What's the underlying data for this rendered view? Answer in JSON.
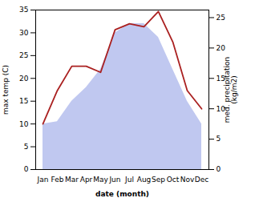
{
  "chart_data": {
    "type": "area",
    "categories": [
      "Jan",
      "Feb",
      "Mar",
      "Apr",
      "May",
      "Jun",
      "Jul",
      "Aug",
      "Sep",
      "Oct",
      "Nov",
      "Dec"
    ],
    "xlabel": "date (month)",
    "ylabel": "max temp (C)",
    "y2label": "med. precipitation\n(kg/m2)",
    "ylim": [
      0,
      35
    ],
    "yticks": [
      0,
      5,
      10,
      15,
      20,
      25,
      30,
      35
    ],
    "y2lim": [
      0,
      26.25
    ],
    "y2ticks": [
      0,
      5,
      10,
      15,
      20,
      25
    ],
    "series": [
      {
        "type": "area",
        "color": "#c0c8f0",
        "values": [
          10,
          10.5,
          15,
          18,
          22,
          30,
          32,
          32,
          29,
          22,
          15,
          10
        ]
      },
      {
        "type": "line",
        "axis": "y2",
        "color": "#aa2020",
        "values": [
          7.5,
          13,
          17,
          17,
          16,
          23,
          24,
          23.5,
          26,
          21,
          13,
          10
        ]
      }
    ]
  }
}
